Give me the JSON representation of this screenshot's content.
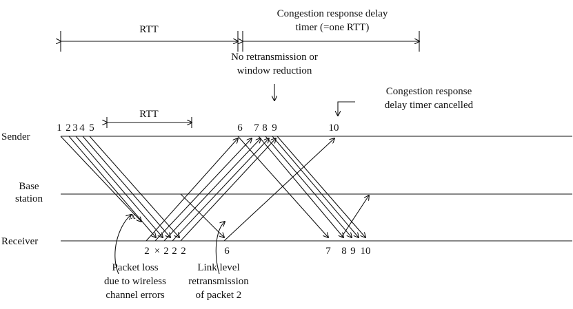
{
  "rows": [
    {
      "lines": [
        "Sender"
      ]
    },
    {
      "lines": [
        "Base",
        "station"
      ]
    },
    {
      "lines": [
        "Receiver"
      ]
    }
  ],
  "annotations": [
    {
      "lines": [
        "RTT"
      ]
    },
    {
      "lines": [
        "Congestion response delay",
        "timer (=one RTT)"
      ]
    },
    {
      "lines": [
        "No retransmission or",
        "window reduction"
      ]
    },
    {
      "lines": [
        "Congestion response",
        "delay timer cancelled"
      ]
    },
    {
      "lines": [
        "RTT"
      ]
    },
    {
      "lines": [
        "x"
      ]
    },
    {
      "lines": [
        "Packet loss",
        "due to wireless",
        "channel errors"
      ]
    },
    {
      "lines": [
        "Link level",
        "retransmission",
        "of packet 2"
      ]
    }
  ],
  "sender_packets": [
    "1",
    "2",
    "3",
    "4",
    "5",
    "6",
    "7",
    "8",
    "9",
    "10"
  ],
  "receiver_packets": [
    "2",
    "×",
    "2",
    "2",
    "2",
    "6",
    "7",
    "8",
    "9",
    "10"
  ]
}
